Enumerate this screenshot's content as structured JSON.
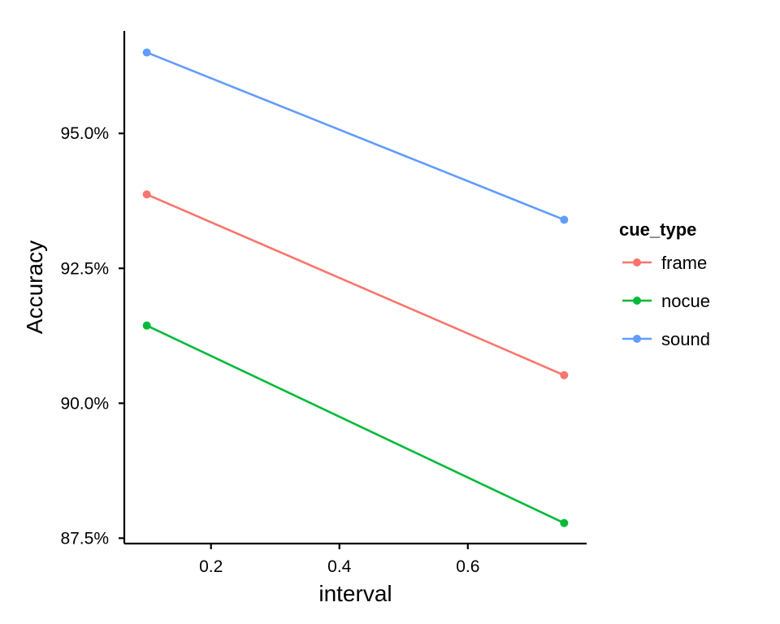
{
  "chart_data": {
    "type": "line",
    "xlabel": "interval",
    "ylabel": "Accuracy",
    "xlim": [
      0.065,
      0.785
    ],
    "ylim": [
      87.4,
      96.9
    ],
    "x_ticks": [
      0.2,
      0.4,
      0.6
    ],
    "x_tick_labels": [
      "0.2",
      "0.4",
      "0.6"
    ],
    "y_ticks": [
      87.5,
      90.0,
      92.5,
      95.0
    ],
    "y_tick_labels": [
      "87.5%",
      "90.0%",
      "92.5%",
      "95.0%"
    ],
    "grid": false,
    "legend": {
      "title": "cue_type",
      "placement": "right"
    },
    "series": [
      {
        "name": "frame",
        "color": "#F8766D",
        "x": [
          0.1,
          0.75
        ],
        "y": [
          93.87,
          90.52
        ]
      },
      {
        "name": "nocue",
        "color": "#00BA38",
        "x": [
          0.1,
          0.75
        ],
        "y": [
          91.44,
          87.78
        ]
      },
      {
        "name": "sound",
        "color": "#619CFF",
        "x": [
          0.1,
          0.75
        ],
        "y": [
          96.5,
          93.4
        ]
      }
    ]
  }
}
